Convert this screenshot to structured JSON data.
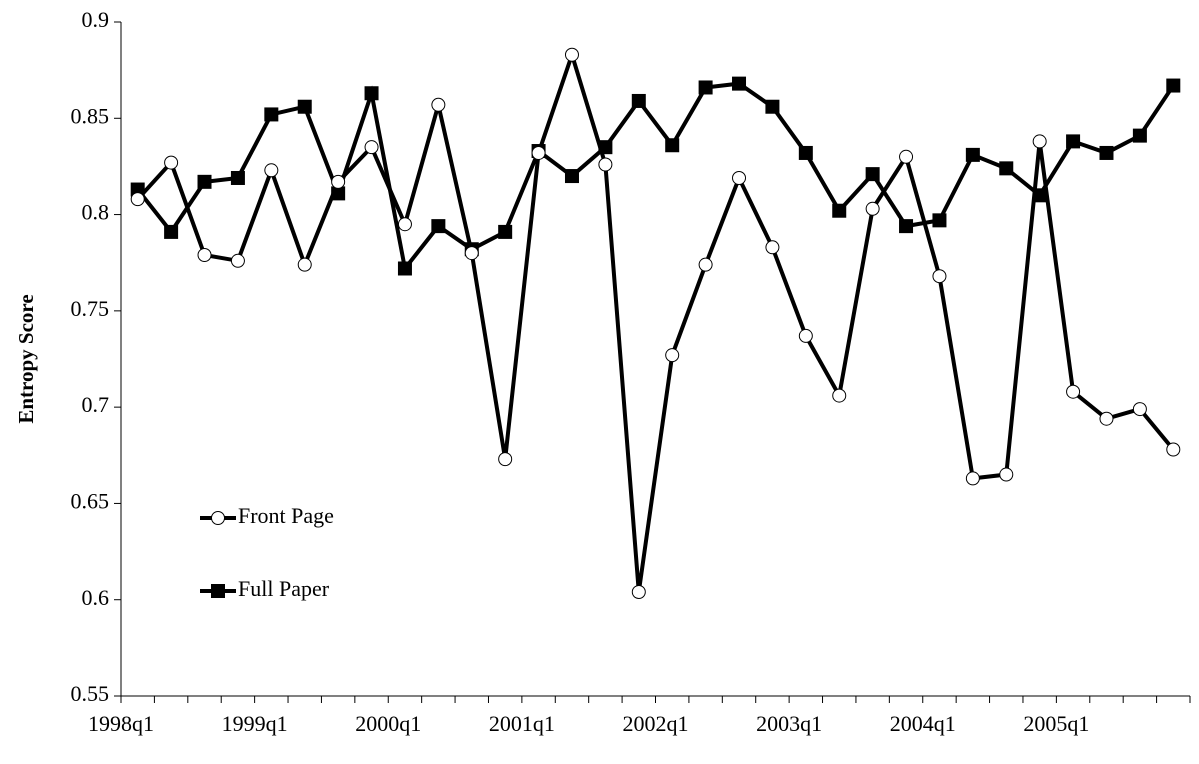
{
  "chart_data": {
    "type": "line",
    "ylabel": "Entropy Score",
    "categories": [
      "1998q1",
      null,
      null,
      null,
      "1999q1",
      null,
      null,
      null,
      "2000q1",
      null,
      null,
      null,
      "2001q1",
      null,
      null,
      null,
      "2002q1",
      null,
      null,
      null,
      "2003q1",
      null,
      null,
      null,
      "2004q1",
      null,
      null,
      null,
      "2005q1",
      null,
      null,
      null
    ],
    "series": [
      {
        "name": "Front Page",
        "color": "#000000",
        "marker": "circle",
        "values": [
          0.808,
          0.827,
          0.779,
          0.776,
          0.823,
          0.774,
          0.817,
          0.835,
          0.795,
          0.857,
          0.78,
          0.673,
          0.832,
          0.883,
          0.826,
          0.604,
          0.727,
          0.774,
          0.819,
          0.783,
          0.737,
          0.706,
          0.803,
          0.83,
          0.768,
          0.663,
          0.665,
          0.838,
          0.708,
          0.694,
          0.699,
          0.678
        ]
      },
      {
        "name": "Full Paper",
        "color": "#000000",
        "marker": "square",
        "values": [
          0.813,
          0.791,
          0.817,
          0.819,
          0.852,
          0.856,
          0.811,
          0.863,
          0.772,
          0.794,
          0.782,
          0.791,
          0.833,
          0.82,
          0.835,
          0.859,
          0.836,
          0.866,
          0.868,
          0.856,
          0.832,
          0.802,
          0.821,
          0.794,
          0.797,
          0.831,
          0.824,
          0.81,
          0.838,
          0.832,
          0.841,
          0.867
        ]
      }
    ],
    "ylim": [
      0.55,
      0.9
    ],
    "yticks": [
      0.55,
      0.6,
      0.65,
      0.7,
      0.75,
      0.8,
      0.85,
      0.9
    ],
    "grid": false,
    "legend": "left"
  }
}
